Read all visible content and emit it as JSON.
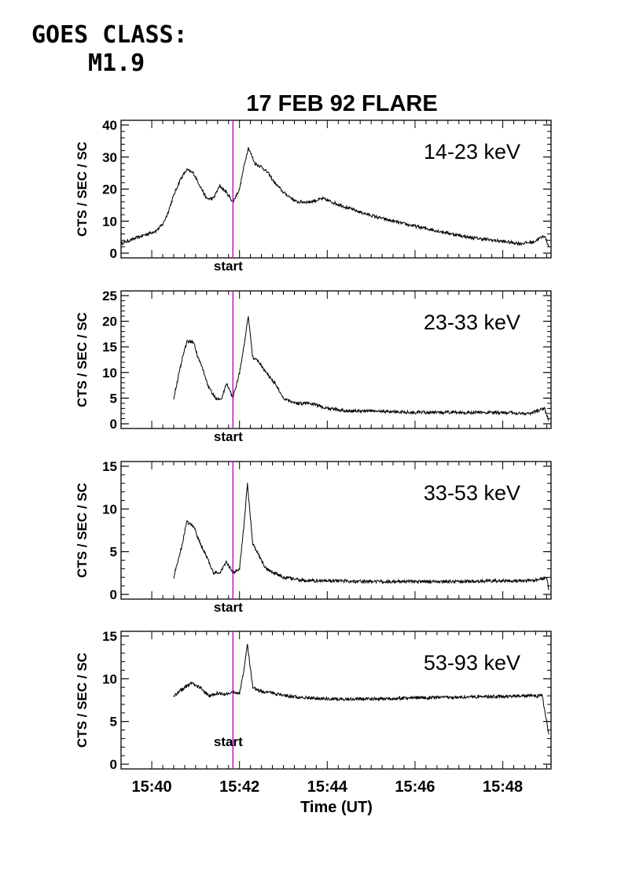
{
  "goes": {
    "label": "GOES CLASS:",
    "value": "M1.9"
  },
  "chart_data": {
    "type": "line",
    "title": "17 FEB 92 FLARE",
    "xlabel": "Time (UT)",
    "x_ticks": [
      "15:40",
      "15:42",
      "15:44",
      "15:46",
      "15:48"
    ],
    "x_range_minutes": [
      39.3,
      49.1
    ],
    "start_marker": {
      "label": "start",
      "time_minutes": 41.85,
      "color": "#cc00cc"
    },
    "panels": [
      {
        "channel": "14-23 keV",
        "ylabel": "CTS / SEC / SC",
        "ylim": [
          0,
          40
        ],
        "yticks": [
          0,
          10,
          20,
          30,
          40
        ],
        "series": {
          "t": [
            39.3,
            39.6,
            39.9,
            40.1,
            40.25,
            40.35,
            40.5,
            40.65,
            40.8,
            40.95,
            41.1,
            41.25,
            41.4,
            41.55,
            41.7,
            41.85,
            42.0,
            42.1,
            42.2,
            42.35,
            42.5,
            42.65,
            42.8,
            43.0,
            43.3,
            43.6,
            43.9,
            44.3,
            44.7,
            45.2,
            45.8,
            46.5,
            47.2,
            47.8,
            48.4,
            48.7,
            48.95,
            49.05
          ],
          "y": [
            3,
            4.5,
            6,
            7,
            9,
            12,
            18,
            23,
            26,
            25,
            21,
            17,
            17,
            21,
            19,
            16,
            20,
            27,
            33,
            28,
            27,
            25,
            22,
            19,
            16,
            16,
            17,
            15,
            13,
            11,
            9,
            7,
            5,
            4,
            3,
            3.5,
            5.5,
            2
          ]
        }
      },
      {
        "channel": "23-33 keV",
        "ylabel": "CTS / SEC / SC",
        "ylim": [
          0,
          25
        ],
        "yticks": [
          0,
          5,
          10,
          15,
          20,
          25
        ],
        "series": {
          "t": [
            40.5,
            40.6,
            40.7,
            40.8,
            40.95,
            41.05,
            41.15,
            41.3,
            41.45,
            41.6,
            41.7,
            41.85,
            42.0,
            42.1,
            42.2,
            42.3,
            42.45,
            42.6,
            42.8,
            43.0,
            43.3,
            43.6,
            44.0,
            44.5,
            45.0,
            46.0,
            47.0,
            48.0,
            48.6,
            48.95,
            49.05
          ],
          "y": [
            5,
            9,
            13,
            16,
            16,
            13,
            11,
            7,
            5,
            5,
            8,
            5,
            10,
            15,
            21,
            13,
            12,
            10,
            8,
            5,
            4,
            4,
            3,
            2.5,
            2.5,
            2.2,
            2.2,
            2.2,
            2.0,
            3.0,
            0.5
          ]
        }
      },
      {
        "channel": "33-53 keV",
        "ylabel": "CTS / SEC / SC",
        "ylim": [
          0,
          15
        ],
        "yticks": [
          0,
          5,
          10,
          15
        ],
        "series": {
          "t": [
            40.5,
            40.6,
            40.7,
            40.8,
            40.95,
            41.1,
            41.25,
            41.4,
            41.55,
            41.7,
            41.85,
            42.0,
            42.1,
            42.18,
            42.3,
            42.45,
            42.6,
            42.8,
            43.0,
            43.5,
            44.0,
            45.0,
            46.0,
            47.0,
            48.0,
            48.7,
            49.0,
            49.05
          ],
          "y": [
            2,
            4,
            6,
            8.5,
            8,
            6,
            4.5,
            2.5,
            2.5,
            3.8,
            2.5,
            3,
            8,
            13,
            6,
            4.5,
            3,
            2.5,
            2.0,
            1.6,
            1.6,
            1.5,
            1.5,
            1.5,
            1.6,
            1.6,
            2.0,
            0.5
          ]
        }
      },
      {
        "channel": "53-93 keV",
        "ylabel": "CTS / SEC / SC",
        "ylim": [
          0,
          15
        ],
        "yticks": [
          0,
          5,
          10,
          15
        ],
        "series": {
          "t": [
            40.5,
            40.7,
            40.9,
            41.1,
            41.3,
            41.5,
            41.7,
            41.85,
            42.0,
            42.1,
            42.18,
            42.3,
            42.5,
            42.8,
            43.2,
            43.8,
            44.5,
            45.5,
            46.5,
            47.5,
            48.5,
            48.9,
            49.05
          ],
          "y": [
            8,
            8.8,
            9.5,
            9,
            8,
            8.3,
            8.2,
            8.5,
            8.3,
            11,
            14,
            9,
            8.5,
            8.3,
            7.9,
            7.7,
            7.6,
            7.7,
            7.8,
            7.9,
            8.0,
            8.0,
            3.5
          ]
        }
      }
    ]
  }
}
